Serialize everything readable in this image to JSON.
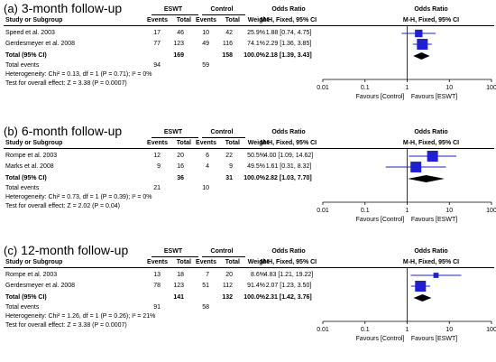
{
  "header": {
    "group1": "ESWT",
    "group2": "Control",
    "or_title": "Odds Ratio",
    "or_sub": "M-H, Fixed, 95% CI",
    "col_study": "Study or Subgroup",
    "col_events": "Events",
    "col_total": "Total",
    "col_weight": "Weight"
  },
  "axis": {
    "ticks": [
      "0.01",
      "0.1",
      "1",
      "10",
      "100"
    ],
    "favours_left": "Favours [Control]",
    "favours_right": "Favours [ESWT]"
  },
  "colors": {
    "study_square": "#1f1fd6",
    "ci_line": "#1f1fd6",
    "diamond": "#000000"
  },
  "panels": [
    {
      "label": "(a)",
      "title": "3-month follow-up",
      "studies": [
        {
          "name": "Speed et al. 2003",
          "e_events": "17",
          "e_total": "46",
          "c_events": "10",
          "c_total": "42",
          "weight": "25.9%",
          "or_text": "1.88 [0.74, 4.75]"
        },
        {
          "name": "Gerdesmeyer et al. 2008",
          "e_events": "77",
          "e_total": "123",
          "c_events": "49",
          "c_total": "116",
          "weight": "74.1%",
          "or_text": "2.29 [1.36, 3.85]"
        }
      ],
      "total": {
        "label": "Total (95% CI)",
        "e_total": "169",
        "c_total": "158",
        "weight": "100.0%",
        "or_text": "2.18 [1.39, 3.43]"
      },
      "total_events": {
        "label": "Total events",
        "e": "94",
        "c": "59"
      },
      "heterogeneity": "Heterogeneity: Chi² = 0.13, df = 1 (P = 0.71); I² = 0%",
      "overall": "Test for overall effect: Z = 3.38 (P = 0.0007)"
    },
    {
      "label": "(b)",
      "title": "6-month follow-up",
      "studies": [
        {
          "name": "Rompe et al. 2003",
          "e_events": "12",
          "e_total": "20",
          "c_events": "6",
          "c_total": "22",
          "weight": "50.5%",
          "or_text": "4.00 [1.09, 14.62]"
        },
        {
          "name": "Marks et al. 2008",
          "e_events": "9",
          "e_total": "16",
          "c_events": "4",
          "c_total": "9",
          "weight": "49.5%",
          "or_text": "1.61 [0.31, 8.32]"
        }
      ],
      "total": {
        "label": "Total (95% CI)",
        "e_total": "36",
        "c_total": "31",
        "weight": "100.0%",
        "or_text": "2.82 [1.03, 7.70]"
      },
      "total_events": {
        "label": "Total events",
        "e": "21",
        "c": "10"
      },
      "heterogeneity": "Heterogeneity: Chi² = 0.73, df = 1 (P = 0.39); I² = 0%",
      "overall": "Test for overall effect: Z = 2.02 (P = 0.04)"
    },
    {
      "label": "(c)",
      "title": "12-month follow-up",
      "studies": [
        {
          "name": "Rompe et al. 2003",
          "e_events": "13",
          "e_total": "18",
          "c_events": "7",
          "c_total": "20",
          "weight": "8.6%",
          "or_text": "4.83 [1.21, 19.22]"
        },
        {
          "name": "Gerdesmeyer et al. 2008",
          "e_events": "78",
          "e_total": "123",
          "c_events": "51",
          "c_total": "112",
          "weight": "91.4%",
          "or_text": "2.07 [1.23, 3.50]"
        }
      ],
      "total": {
        "label": "Total (95% CI)",
        "e_total": "141",
        "c_total": "132",
        "weight": "100.0%",
        "or_text": "2.31 [1.42, 3.76]"
      },
      "total_events": {
        "label": "Total events",
        "e": "91",
        "c": "58"
      },
      "heterogeneity": "Heterogeneity: Chi² = 1.26, df = 1 (P = 0.26); I² = 21%",
      "overall": "Test for overall effect: Z = 3.38 (P = 0.0007)"
    }
  ],
  "chart_data": [
    {
      "type": "forest",
      "title": "3-month follow-up",
      "x_scale": "log",
      "xlim": [
        0.01,
        100
      ],
      "studies": [
        {
          "name": "Speed et al. 2003",
          "or": 1.88,
          "ci": [
            0.74,
            4.75
          ],
          "weight": 25.9
        },
        {
          "name": "Gerdesmeyer et al. 2008",
          "or": 2.29,
          "ci": [
            1.36,
            3.85
          ],
          "weight": 74.1
        }
      ],
      "pooled": {
        "or": 2.18,
        "ci": [
          1.39,
          3.43
        ]
      }
    },
    {
      "type": "forest",
      "title": "6-month follow-up",
      "x_scale": "log",
      "xlim": [
        0.01,
        100
      ],
      "studies": [
        {
          "name": "Rompe et al. 2003",
          "or": 4.0,
          "ci": [
            1.09,
            14.62
          ],
          "weight": 50.5
        },
        {
          "name": "Marks et al. 2008",
          "or": 1.61,
          "ci": [
            0.31,
            8.32
          ],
          "weight": 49.5
        }
      ],
      "pooled": {
        "or": 2.82,
        "ci": [
          1.03,
          7.7
        ]
      }
    },
    {
      "type": "forest",
      "title": "12-month follow-up",
      "x_scale": "log",
      "xlim": [
        0.01,
        100
      ],
      "studies": [
        {
          "name": "Rompe et al. 2003",
          "or": 4.83,
          "ci": [
            1.21,
            19.22
          ],
          "weight": 8.6
        },
        {
          "name": "Gerdesmeyer et al. 2008",
          "or": 2.07,
          "ci": [
            1.23,
            3.5
          ],
          "weight": 91.4
        }
      ],
      "pooled": {
        "or": 2.31,
        "ci": [
          1.42,
          3.76
        ]
      }
    }
  ]
}
